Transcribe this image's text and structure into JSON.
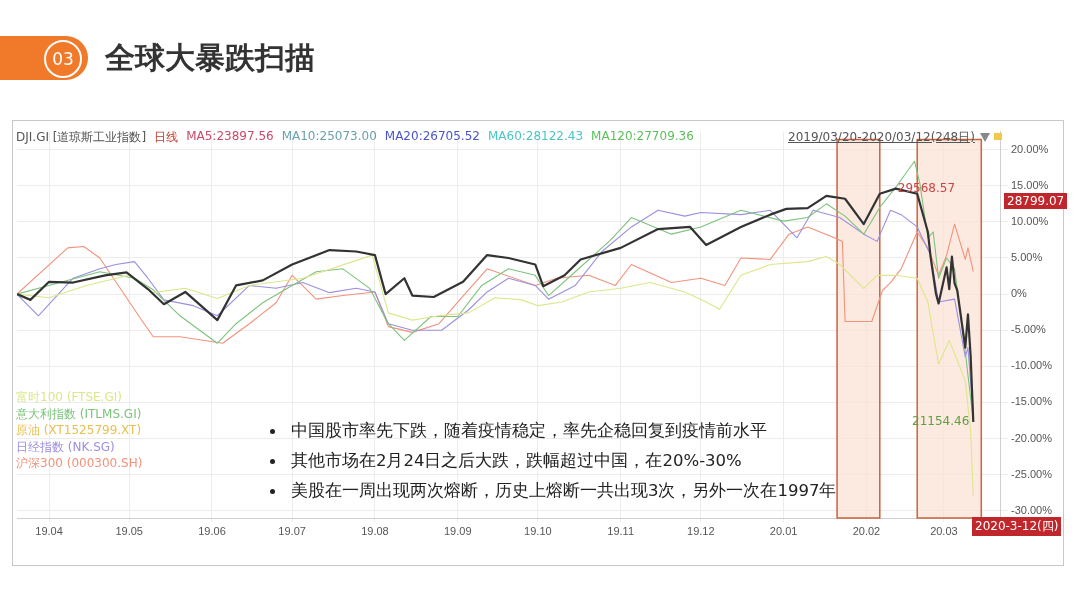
{
  "chart_data": {
    "type": "line",
    "title": "全球大暴跌扫描",
    "subtitle": "DJI.GI [道琼斯工业指数]",
    "xlim": [
      "2019-03-20",
      "2020-03-22"
    ],
    "xticks": [
      {
        "value": "2019-04-01",
        "label": "19.04"
      },
      {
        "value": "2019-05-01",
        "label": "19.05"
      },
      {
        "value": "2019-06-01",
        "label": "19.06"
      },
      {
        "value": "2019-07-01",
        "label": "19.07"
      },
      {
        "value": "2019-08-01",
        "label": "19.08"
      },
      {
        "value": "2019-09-01",
        "label": "19.09"
      },
      {
        "value": "2019-10-01",
        "label": "19.10"
      },
      {
        "value": "2019-11-01",
        "label": "19.11"
      },
      {
        "value": "2019-12-01",
        "label": "19.12"
      },
      {
        "value": "2020-01-01",
        "label": "20.01"
      },
      {
        "value": "2020-02-01",
        "label": "20.02"
      },
      {
        "value": "2020-03-01",
        "label": "20.03"
      }
    ],
    "ylim": [
      -31,
      22.5
    ],
    "yticks": [
      {
        "value": 20,
        "label": "20.00%"
      },
      {
        "value": 15,
        "label": "15.00%"
      },
      {
        "value": 10,
        "label": "10.00%"
      },
      {
        "value": 5,
        "label": "5.00%"
      },
      {
        "value": 0,
        "label": "0%"
      },
      {
        "value": -5,
        "label": "-5.00%"
      },
      {
        "value": -10,
        "label": "-10.00%"
      },
      {
        "value": -15,
        "label": "-15.00%"
      },
      {
        "value": -20,
        "label": "-20.00%"
      },
      {
        "value": -25,
        "label": "-25.00%"
      },
      {
        "value": -30,
        "label": "-30.00%"
      }
    ],
    "grid": true,
    "legend": "bottom left",
    "marker": "none",
    "bands": [
      {
        "axis": "x",
        "from": "2020-01-21",
        "to": "2020-02-06",
        "color": "#fbe3d6"
      },
      {
        "axis": "x",
        "from": "2020-02-20",
        "to": "2020-03-15",
        "color": "#fbe3d6"
      }
    ],
    "series": [
      {
        "color": "#333333",
        "x": [
          "2019-03-20",
          "2019-03-25",
          "2019-04-01",
          "2019-04-10",
          "2019-04-22",
          "2019-04-30",
          "2019-05-08",
          "2019-05-14",
          "2019-05-22",
          "2019-06-03",
          "2019-06-10",
          "2019-06-20",
          "2019-07-01",
          "2019-07-15",
          "2019-07-25",
          "2019-08-01",
          "2019-08-05",
          "2019-08-12",
          "2019-08-15",
          "2019-08-23",
          "2019-09-03",
          "2019-09-12",
          "2019-09-20",
          "2019-09-30",
          "2019-10-03",
          "2019-10-11",
          "2019-10-17",
          "2019-11-01",
          "2019-11-15",
          "2019-11-27",
          "2019-12-03",
          "2019-12-16",
          "2019-12-27",
          "2020-01-02",
          "2020-01-10",
          "2020-01-17",
          "2020-01-24",
          "2020-01-31",
          "2020-02-06",
          "2020-02-12",
          "2020-02-20",
          "2020-02-24",
          "2020-02-25",
          "2020-02-27",
          "2020-02-28",
          "2020-03-02",
          "2020-03-03",
          "2020-03-04",
          "2020-03-05",
          "2020-03-06",
          "2020-03-09",
          "2020-03-10",
          "2020-03-11",
          "2020-03-12"
        ],
        "values": [
          0,
          -0.8,
          1.7,
          1.6,
          2.6,
          3.0,
          0.7,
          -1.4,
          0.3,
          -3.6,
          1.2,
          1.9,
          4.1,
          6.1,
          5.9,
          5.4,
          0.0,
          2.2,
          -0.2,
          -0.4,
          1.7,
          5.4,
          5.0,
          4.1,
          1.1,
          2.6,
          4.8,
          6.4,
          9.0,
          9.3,
          6.8,
          9.3,
          11.0,
          11.8,
          11.9,
          13.6,
          13.2,
          9.7,
          13.9,
          14.6,
          13.9,
          8.6,
          5.2,
          0.1,
          -1.3,
          3.7,
          0.7,
          5.2,
          1.5,
          0.5,
          -7.4,
          -2.8,
          -8.5,
          -17.7
        ]
      },
      {
        "name": "富时100 (FTSE.GI)",
        "color": "#dde68a",
        "x": [
          "2019-03-20",
          "2019-04-01",
          "2019-04-15",
          "2019-05-01",
          "2019-05-10",
          "2019-05-22",
          "2019-06-03",
          "2019-06-15",
          "2019-07-05",
          "2019-07-31",
          "2019-08-06",
          "2019-08-15",
          "2019-08-25",
          "2019-09-05",
          "2019-09-15",
          "2019-09-25",
          "2019-10-01",
          "2019-10-10",
          "2019-10-20",
          "2019-11-01",
          "2019-11-12",
          "2019-11-25",
          "2019-12-03",
          "2019-12-08",
          "2019-12-16",
          "2019-12-27",
          "2020-01-10",
          "2020-01-17",
          "2020-01-22",
          "2020-01-31",
          "2020-02-05",
          "2020-02-12",
          "2020-02-20",
          "2020-02-24",
          "2020-02-28",
          "2020-03-03",
          "2020-03-09",
          "2020-03-11",
          "2020-03-12"
        ],
        "values": [
          0,
          -0.5,
          1.2,
          2.6,
          0.2,
          0.8,
          -0.6,
          1.2,
          2.2,
          5.4,
          -2.6,
          -3.6,
          -3.0,
          -2.6,
          -0.5,
          -0.8,
          -1.6,
          -1.1,
          0.3,
          0.8,
          1.6,
          0.3,
          -1.1,
          -2.1,
          2.6,
          4.1,
          4.5,
          5.2,
          4.1,
          0.8,
          2.6,
          2.6,
          2.2,
          -1.1,
          -9.7,
          -6.4,
          -12.0,
          -19.0,
          -28.0
        ]
      },
      {
        "name": "意大利指数 (ITLMS.GI)",
        "color": "#7cc37c",
        "x": [
          "2019-03-20",
          "2019-04-05",
          "2019-04-20",
          "2019-05-03",
          "2019-05-10",
          "2019-05-20",
          "2019-06-03",
          "2019-06-10",
          "2019-06-20",
          "2019-07-01",
          "2019-07-10",
          "2019-07-20",
          "2019-07-30",
          "2019-08-06",
          "2019-08-12",
          "2019-08-22",
          "2019-09-01",
          "2019-09-10",
          "2019-09-20",
          "2019-09-30",
          "2019-10-05",
          "2019-10-15",
          "2019-10-28",
          "2019-11-05",
          "2019-11-20",
          "2019-12-01",
          "2019-12-16",
          "2020-01-01",
          "2020-01-10",
          "2020-01-17",
          "2020-01-24",
          "2020-01-31",
          "2020-02-06",
          "2020-02-12",
          "2020-02-19",
          "2020-02-21",
          "2020-02-24",
          "2020-02-26",
          "2020-02-28",
          "2020-03-02",
          "2020-03-05",
          "2020-03-09",
          "2020-03-12"
        ],
        "values": [
          0,
          1.6,
          3.1,
          2.2,
          0.6,
          -3.0,
          -6.8,
          -4.1,
          -1.2,
          1.2,
          3.1,
          3.5,
          0.8,
          -4.1,
          -6.4,
          -3.1,
          -3.1,
          1.2,
          3.5,
          2.6,
          -0.2,
          3.1,
          7.4,
          10.6,
          8.3,
          9.3,
          11.6,
          10.1,
          10.6,
          12.5,
          10.8,
          8.3,
          12.0,
          14.8,
          18.4,
          15.3,
          7.8,
          8.6,
          2.2,
          5.0,
          3.5,
          -8.0,
          -17.5
        ]
      },
      {
        "name": "原油 (XT1525799.XT)",
        "color": "#e8c050"
      },
      {
        "name": "日经指数 (NK.SG)",
        "color": "#9b8fe0",
        "x": [
          "2019-03-20",
          "2019-03-28",
          "2019-04-10",
          "2019-04-20",
          "2019-04-26",
          "2019-05-03",
          "2019-05-08",
          "2019-05-14",
          "2019-05-25",
          "2019-06-03",
          "2019-06-15",
          "2019-06-25",
          "2019-07-05",
          "2019-07-15",
          "2019-07-25",
          "2019-08-01",
          "2019-08-06",
          "2019-08-15",
          "2019-08-26",
          "2019-09-05",
          "2019-09-12",
          "2019-09-20",
          "2019-09-30",
          "2019-10-05",
          "2019-10-15",
          "2019-10-25",
          "2019-11-05",
          "2019-11-15",
          "2019-11-25",
          "2019-12-01",
          "2019-12-16",
          "2019-12-27",
          "2020-01-06",
          "2020-01-12",
          "2020-01-22",
          "2020-01-31",
          "2020-02-05",
          "2020-02-10",
          "2020-02-14",
          "2020-02-20",
          "2020-02-25",
          "2020-02-28",
          "2020-03-05",
          "2020-03-09",
          "2020-03-10",
          "2020-03-12"
        ],
        "values": [
          0,
          -3.0,
          2.2,
          3.5,
          4.1,
          4.5,
          2.2,
          -0.8,
          -1.6,
          -3.0,
          1.2,
          0.8,
          1.6,
          0.2,
          0.8,
          0.3,
          -4.1,
          -5.0,
          -5.0,
          -2.2,
          0.3,
          2.2,
          1.2,
          -0.7,
          1.2,
          5.9,
          9.3,
          11.6,
          10.8,
          11.3,
          11.0,
          11.6,
          7.8,
          11.6,
          10.6,
          8.3,
          7.3,
          11.6,
          11.0,
          9.3,
          5.4,
          -1.1,
          -0.7,
          -8.7,
          -7.4,
          -16.8
        ]
      },
      {
        "name": "沪深300 (000300.SH)",
        "color": "#f2927c",
        "x": [
          "2019-03-20",
          "2019-04-08",
          "2019-04-14",
          "2019-04-20",
          "2019-05-06",
          "2019-05-10",
          "2019-05-20",
          "2019-06-05",
          "2019-06-15",
          "2019-06-25",
          "2019-07-01",
          "2019-07-10",
          "2019-07-20",
          "2019-08-01",
          "2019-08-06",
          "2019-08-15",
          "2019-08-25",
          "2019-09-01",
          "2019-09-12",
          "2019-09-30",
          "2019-10-08",
          "2019-10-20",
          "2019-10-30",
          "2019-11-05",
          "2019-11-20",
          "2019-12-01",
          "2019-12-10",
          "2019-12-16",
          "2019-12-27",
          "2020-01-03",
          "2020-01-10",
          "2020-01-20",
          "2020-01-23",
          "2020-01-24",
          "2020-02-03",
          "2020-02-07",
          "2020-02-10",
          "2020-02-14",
          "2020-02-20",
          "2020-02-24",
          "2020-02-28",
          "2020-03-02",
          "2020-03-05",
          "2020-03-09",
          "2020-03-10",
          "2020-03-12"
        ],
        "values": [
          0,
          6.4,
          6.6,
          5.0,
          -3.8,
          -5.9,
          -5.9,
          -6.8,
          -4.1,
          -1.2,
          2.6,
          -0.7,
          -0.2,
          0.3,
          -4.5,
          -5.3,
          -4.1,
          -1.1,
          3.5,
          1.2,
          2.2,
          2.6,
          1.2,
          4.1,
          1.6,
          2.2,
          1.2,
          5.0,
          4.8,
          8.3,
          9.3,
          7.8,
          7.3,
          -3.8,
          -3.8,
          0.5,
          1.6,
          3.5,
          8.6,
          6.4,
          2.6,
          5.4,
          9.7,
          4.8,
          6.4,
          3.1
        ]
      }
    ],
    "annotations": [
      "03",
      "日线",
      "MA5:23897.56",
      "MA10:25073.00",
      "MA20:26705.52",
      "MA60:28122.43",
      "MA120:27709.36",
      "2019/03/20-2020/03/12(248日)",
      {
        "text": "29568.57",
        "x": "2020-02-12",
        "y": 14.6
      },
      {
        "text": "21154.46",
        "x": "2020-03-12",
        "y": -17.7
      },
      "28799.07",
      "2020-3-12(四)",
      "中国股市率先下跌，随着疫情稳定，率先企稳回复到疫情前水平",
      "其他市场在2月24日之后大跌，跌幅超过中国，在20%-30%",
      "美股在一周出现两次熔断，历史上熔断一共出现3次，另外一次在1997年"
    ]
  }
}
